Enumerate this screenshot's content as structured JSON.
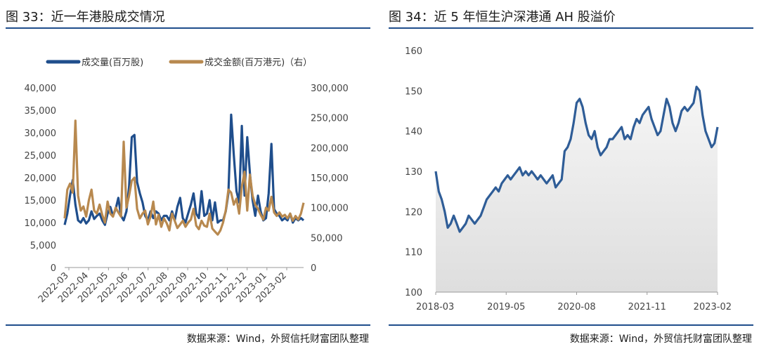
{
  "figures": {
    "left": {
      "title": "图 33：近一年港股成交情况",
      "source": "数据来源：Wind，外贸信托财富团队整理"
    },
    "right": {
      "title": "图 34：近 5 年恒生沪深港通 AH 股溢价",
      "source": "数据来源：Wind，外贸信托财富团队整理"
    }
  },
  "colors": {
    "volume": "#1f4e8c",
    "turnover": "#b8894f",
    "ah_line": "#2f5d97",
    "ah_fill": "#dedede",
    "rule": "#1f4e8c"
  },
  "chart_data": [
    {
      "type": "line",
      "title": "",
      "legend_position": "top",
      "x_ticks": [
        "2022-03",
        "2022-04",
        "2022-05",
        "2022-06",
        "2022-07",
        "2022-08",
        "2022-09",
        "2022-10",
        "2022-11",
        "2022-12",
        "2023-01",
        "2023-02"
      ],
      "y_left_ticks": [
        "0",
        "5,000",
        "10,000",
        "15,000",
        "20,000",
        "25,000",
        "30,000",
        "35,000",
        "40,000"
      ],
      "y_right_ticks": [
        "0",
        "50,000",
        "100,000",
        "150,000",
        "200,000",
        "250,000",
        "300,000"
      ],
      "ylim_left": [
        0,
        40000
      ],
      "ylim_right": [
        0,
        300000
      ],
      "grid": false,
      "series": [
        {
          "name": "成交量(百万股)",
          "axis": "left",
          "values": [
            9500,
            12000,
            16000,
            19500,
            14000,
            10500,
            10000,
            11000,
            9800,
            10500,
            12500,
            10800,
            11500,
            12000,
            10500,
            9500,
            12000,
            13500,
            11500,
            13000,
            15500,
            11500,
            10500,
            12500,
            18000,
            29000,
            29500,
            19000,
            16500,
            14500,
            11500,
            10500,
            12500,
            11000,
            12500,
            12000,
            10500,
            11500,
            11500,
            10500,
            12500,
            10500,
            13500,
            15500,
            11000,
            10000,
            12000,
            14000,
            16500,
            12000,
            11000,
            17000,
            11500,
            12000,
            15000,
            10500,
            14500,
            10000,
            10500,
            10500,
            12500,
            16500,
            34000,
            25000,
            17000,
            14500,
            31500,
            16000,
            29000,
            21000,
            15000,
            11500,
            16000,
            12500,
            10500,
            11000,
            16500,
            27500,
            13000,
            12000,
            11500,
            10500,
            11000,
            10500,
            12000,
            10000,
            11000,
            10500,
            11000,
            10500
          ]
        },
        {
          "name": "成交金额(百万港元)（右）",
          "axis": "right",
          "values": [
            82000,
            130000,
            140000,
            125000,
            245000,
            120000,
            95000,
            102000,
            85000,
            112000,
            130000,
            95000,
            90000,
            105000,
            88000,
            75000,
            110000,
            90000,
            85000,
            100000,
            92000,
            85000,
            210000,
            100000,
            120000,
            145000,
            150000,
            98000,
            82000,
            90000,
            95000,
            72000,
            85000,
            110000,
            72000,
            88000,
            68000,
            82000,
            74000,
            62000,
            90000,
            78000,
            66000,
            72000,
            78000,
            68000,
            75000,
            80000,
            98000,
            70000,
            64000,
            78000,
            70000,
            68000,
            90000,
            65000,
            60000,
            55000,
            62000,
            75000,
            95000,
            130000,
            125000,
            105000,
            115000,
            90000,
            135000,
            160000,
            95000,
            155000,
            120000,
            105000,
            98000,
            88000,
            80000,
            100000,
            95000,
            118000,
            92000,
            86000,
            92000,
            85000,
            88000,
            82000,
            90000,
            78000,
            86000,
            80000,
            90000,
            108000
          ]
        }
      ]
    },
    {
      "type": "area",
      "title": "",
      "x_ticks": [
        "2018-03",
        "2019-05",
        "2020-08",
        "2021-11",
        "2023-02"
      ],
      "ylim": [
        100,
        160
      ],
      "y_ticks": [
        "100",
        "110",
        "120",
        "130",
        "140",
        "150",
        "160"
      ],
      "grid": false,
      "series": [
        {
          "name": "",
          "values": [
            130,
            125,
            123,
            120,
            116,
            117,
            119,
            117,
            115,
            116,
            117,
            119,
            118,
            117,
            118,
            119,
            121,
            123,
            124,
            125,
            126,
            125,
            127,
            128,
            129,
            128,
            129,
            130,
            131,
            129,
            130,
            129,
            130,
            129,
            128,
            129,
            128,
            127,
            128,
            129,
            126,
            127,
            128,
            135,
            136,
            138,
            142,
            147,
            148,
            146,
            142,
            139,
            138,
            140,
            136,
            134,
            135,
            136,
            138,
            138,
            139,
            140,
            141,
            138,
            139,
            138,
            141,
            143,
            142,
            144,
            145,
            146,
            143,
            141,
            139,
            140,
            144,
            148,
            146,
            142,
            140,
            142,
            145,
            146,
            145,
            146,
            147,
            151,
            150,
            144,
            140,
            138,
            136,
            137,
            141
          ]
        }
      ]
    }
  ]
}
